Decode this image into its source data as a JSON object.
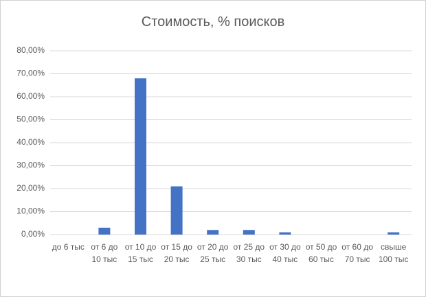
{
  "chart_data": {
    "type": "bar",
    "title": "Стоимость, % поисков",
    "categories": [
      "до 6 тыс",
      "от 6 до 10 тыс",
      "от 10 до 15 тыс",
      "от 15 до 20 тыс",
      "от 20 до 25 тыс",
      "от 25 до 30 тыс",
      "от 30 до 40 тыс",
      "от 50 до 60 тыс",
      "от 60 до 70 тыс",
      "свыше 100 тыс"
    ],
    "values": [
      0,
      3,
      68,
      21,
      2,
      2,
      1,
      0,
      0,
      1
    ],
    "color": "#4472c4",
    "ylim": [
      0,
      80
    ],
    "yticks": [
      {
        "value": 0,
        "label": "0,00%"
      },
      {
        "value": 10,
        "label": "10,00%"
      },
      {
        "value": 20,
        "label": "20,00%"
      },
      {
        "value": 30,
        "label": "30,00%"
      },
      {
        "value": 40,
        "label": "40,00%"
      },
      {
        "value": 50,
        "label": "50,00%"
      },
      {
        "value": 60,
        "label": "60,00%"
      },
      {
        "value": 70,
        "label": "70,00%"
      },
      {
        "value": 80,
        "label": "80,00%"
      }
    ],
    "grid": true
  }
}
